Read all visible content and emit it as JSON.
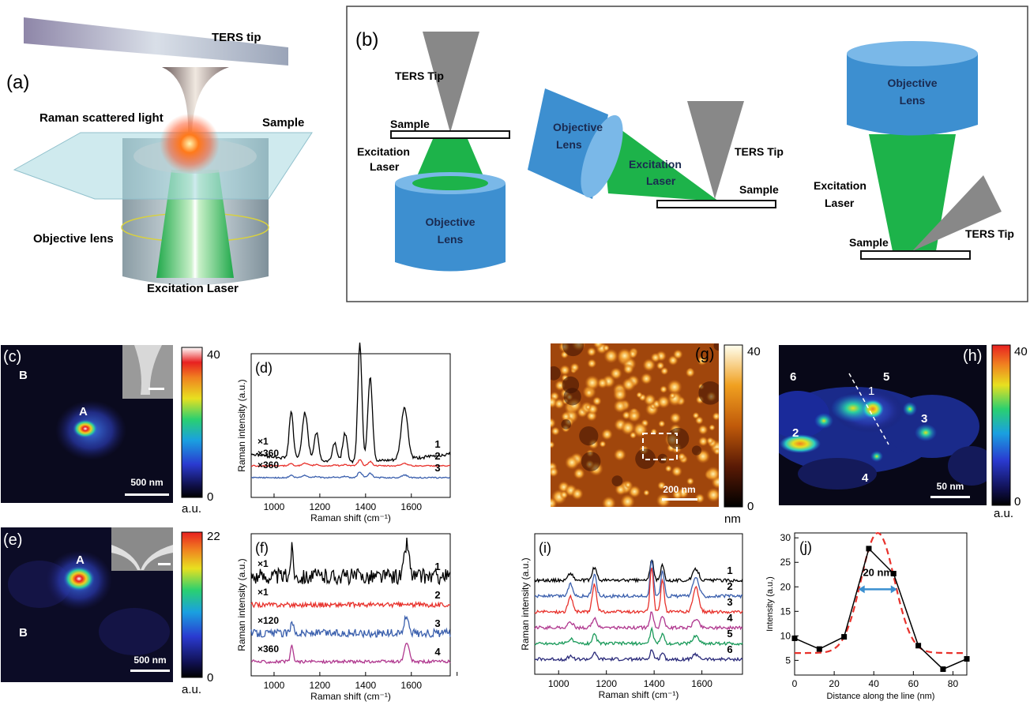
{
  "panel_a": {
    "letter": "(a)",
    "tip": "TERS tip",
    "scatter": "Raman scattered light",
    "sample": "Sample",
    "objective": "Objective lens",
    "laser": "Excitation Laser"
  },
  "panel_b": {
    "letter": "(b)",
    "left": {
      "tip": "TERS Tip",
      "sample": "Sample",
      "laser1": "Excitation",
      "laser2": "Laser",
      "obj1": "Objective",
      "obj2": "Lens"
    },
    "middle": {
      "obj1": "Objective",
      "obj2": "Lens",
      "laser1": "Excitation",
      "laser2": "Laser",
      "tip": "TERS Tip",
      "sample": "Sample"
    },
    "right": {
      "obj1": "Objective",
      "obj2": "Lens",
      "laser1": "Excitation",
      "laser2": "Laser",
      "sample": "Sample",
      "tip": "TERS Tip"
    }
  },
  "panel_c": {
    "letter": "(c)",
    "spotA": "A",
    "spotB": "B",
    "scalebar": "500 nm",
    "cb_max": "40",
    "cb_min": "0",
    "unit": "a.u."
  },
  "panel_e": {
    "letter": "(e)",
    "spotA": "A",
    "spotB": "B",
    "scalebar": "500 nm",
    "cb_max": "22",
    "cb_min": "0",
    "unit": "a.u."
  },
  "panel_g": {
    "letter": "(g)",
    "scalebar": "200 nm",
    "cb_max": "40",
    "cb_min": "0",
    "unit": "nm"
  },
  "panel_h": {
    "letter": "(h)",
    "scalebar": "50 nm",
    "cb_max": "40",
    "cb_min": "0",
    "unit": "a.u.",
    "labels": [
      "1",
      "2",
      "3",
      "4",
      "5",
      "6"
    ]
  },
  "chart_data": [
    {
      "id": "d",
      "type": "line",
      "letter": "(d)",
      "xlabel": "Raman shift (cm⁻¹)",
      "ylabel": "Raman intensity (a.u.)",
      "xlim": [
        900,
        1770
      ],
      "xticks": [
        1000,
        1200,
        1400,
        1600
      ],
      "peaks": [
        [
          1075,
          1.0,
          9
        ],
        [
          1135,
          1.0,
          12
        ],
        [
          1185,
          0.6,
          10
        ],
        [
          1265,
          0.4,
          10
        ],
        [
          1310,
          0.6,
          10
        ],
        [
          1375,
          2.5,
          9
        ],
        [
          1420,
          1.8,
          10
        ],
        [
          1570,
          1.1,
          14
        ]
      ],
      "series": [
        {
          "name": "1",
          "factor": "×1",
          "color": "#000000"
        },
        {
          "name": "2",
          "factor": "×360",
          "color": "#e8312b"
        },
        {
          "name": "3",
          "factor": "×360",
          "color": "#3a5fad"
        }
      ]
    },
    {
      "id": "f",
      "type": "line",
      "letter": "(f)",
      "xlabel": "Raman shift (cm⁻¹)",
      "ylabel": "Raman intensity (a.u.)",
      "xlim": [
        900,
        1770
      ],
      "xticks": [
        1000,
        1200,
        1400,
        1600,
        1800
      ],
      "peaks": [
        [
          1078,
          1.0,
          6
        ],
        [
          1580,
          1.2,
          10
        ]
      ],
      "series": [
        {
          "name": "1",
          "factor": "×1",
          "color": "#000000"
        },
        {
          "name": "2",
          "factor": "×1",
          "color": "#e8312b"
        },
        {
          "name": "3",
          "factor": "×120",
          "color": "#3a5fad"
        },
        {
          "name": "4",
          "factor": "×360",
          "color": "#b0388f"
        }
      ]
    },
    {
      "id": "i",
      "type": "line",
      "letter": "(i)",
      "xlabel": "Raman shift (cm⁻¹)",
      "ylabel": "Raman intensity (a.u.)",
      "xlim": [
        900,
        1770
      ],
      "xticks": [
        1000,
        1200,
        1400,
        1600
      ],
      "peaks": [
        [
          1050,
          0.5,
          10
        ],
        [
          1150,
          0.9,
          9
        ],
        [
          1390,
          1.5,
          7
        ],
        [
          1435,
          1.1,
          7
        ],
        [
          1575,
          0.8,
          12
        ]
      ],
      "series": [
        {
          "name": "1",
          "color": "#000000"
        },
        {
          "name": "2",
          "color": "#3a5fad"
        },
        {
          "name": "3",
          "color": "#e8312b"
        },
        {
          "name": "4",
          "color": "#b0388f"
        },
        {
          "name": "5",
          "color": "#1a9a5a"
        },
        {
          "name": "6",
          "color": "#2a2a7a"
        }
      ]
    },
    {
      "id": "j",
      "type": "line",
      "letter": "(j)",
      "xlabel": "Distance along the line (nm)",
      "ylabel": "Intensity (a.u.)",
      "xlim": [
        0,
        87
      ],
      "ylim": [
        2,
        31
      ],
      "xticks": [
        0,
        20,
        40,
        60,
        80
      ],
      "yticks": [
        5,
        10,
        15,
        20,
        25,
        30
      ],
      "x": [
        0,
        12.5,
        25,
        37.5,
        50,
        62.5,
        75,
        87
      ],
      "y": [
        9.5,
        7.3,
        9.8,
        27.8,
        22.7,
        8.0,
        3.2,
        5.3
      ],
      "fit_color": "#e8312b",
      "annotation": "20 nm"
    }
  ]
}
